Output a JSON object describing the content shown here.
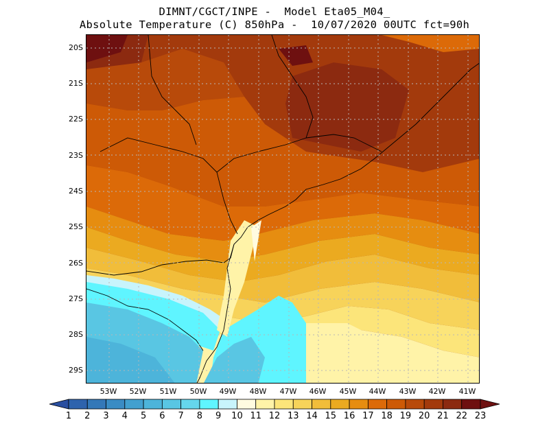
{
  "title": {
    "line1": "DIMNT/CGCT/INPE -  Model Eta05_M04_",
    "line2": "Absolute Temperature (C) 850hPa -  10/07/2020 00UTC fct=90h"
  },
  "axes": {
    "lat_labels": [
      "20S",
      "21S",
      "22S",
      "23S",
      "24S",
      "25S",
      "26S",
      "27S",
      "28S",
      "29S"
    ],
    "lon_labels": [
      "53W",
      "52W",
      "51W",
      "50W",
      "49W",
      "48W",
      "47W",
      "46W",
      "45W",
      "44W",
      "43W",
      "42W",
      "41W"
    ]
  },
  "colorbar": {
    "labels": [
      "1",
      "2",
      "3",
      "4",
      "5",
      "6",
      "7",
      "8",
      "9",
      "10",
      "11",
      "12",
      "13",
      "14",
      "15",
      "16",
      "17",
      "18",
      "19",
      "20",
      "21",
      "22",
      "23"
    ],
    "colors": [
      "#2a4fa0",
      "#2e63ad",
      "#3478b8",
      "#3a8cc4",
      "#42a0cf",
      "#4db4da",
      "#59c6e3",
      "#65d6ec",
      "#5ff5ff",
      "#c8f4fc",
      "#fffbe0",
      "#fff3a8",
      "#fce57a",
      "#f7d35a",
      "#f1bd3a",
      "#ebaa20",
      "#e68d10",
      "#dc6a08",
      "#cd5a06",
      "#b84a0a",
      "#a33a0c",
      "#8c2a10",
      "#6e1010"
    ]
  }
}
